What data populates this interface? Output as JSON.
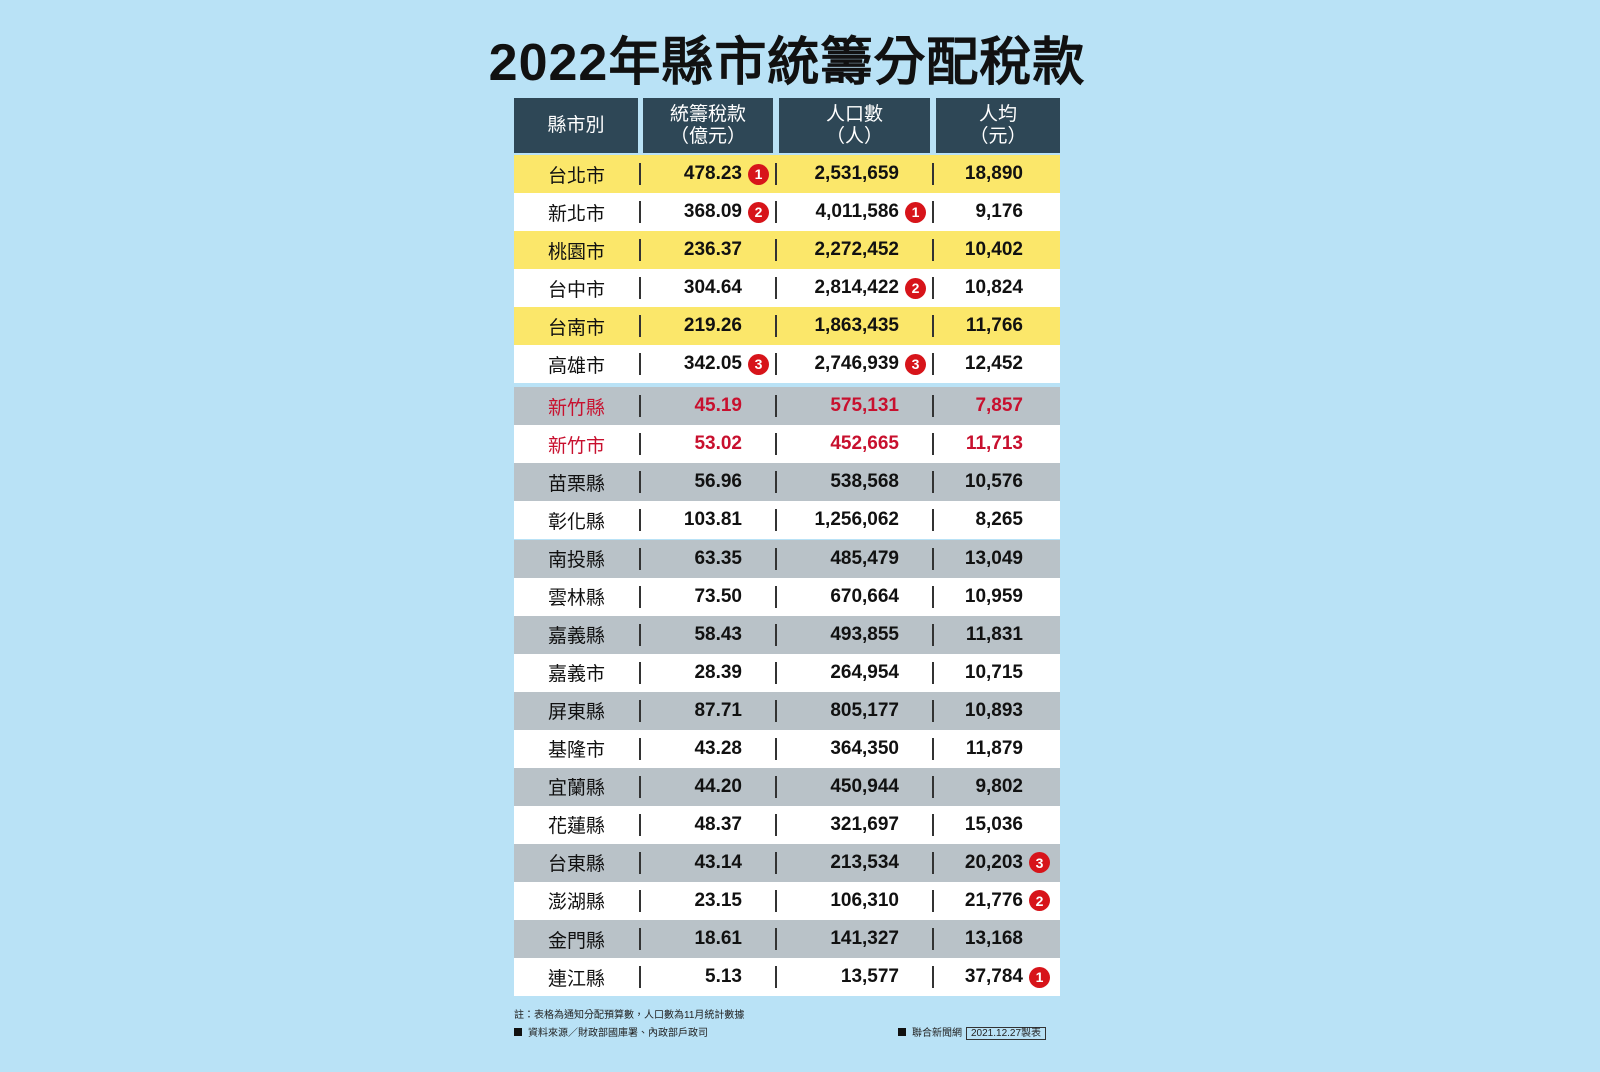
{
  "title": "2022年縣市統籌分配稅款",
  "table": {
    "header": [
      [
        "縣市別"
      ],
      [
        "統籌稅款",
        "（億元）"
      ],
      [
        "人口數",
        "（人）"
      ],
      [
        "人均",
        "（元）"
      ]
    ],
    "groups": [
      {
        "rows": [
          {
            "county": "台北市",
            "tax": "478.23",
            "tax_rank": "1",
            "population": "2,531,659",
            "per_capita": "18,890"
          },
          {
            "county": "新北市",
            "tax": "368.09",
            "tax_rank": "2",
            "population": "4,011,586",
            "population_rank": "1",
            "per_capita": "9,176"
          },
          {
            "county": "桃園市",
            "tax": "236.37",
            "population": "2,272,452",
            "per_capita": "10,402"
          },
          {
            "county": "台中市",
            "tax": "304.64",
            "population": "2,814,422",
            "population_rank": "2",
            "per_capita": "10,824"
          },
          {
            "county": "台南市",
            "tax": "219.26",
            "population": "1,863,435",
            "per_capita": "11,766"
          },
          {
            "county": "高雄市",
            "tax": "342.05",
            "tax_rank": "3",
            "population": "2,746,939",
            "population_rank": "3",
            "per_capita": "12,452"
          }
        ]
      },
      {
        "rows": [
          {
            "county": "新竹縣",
            "tax": "45.19",
            "population": "575,131",
            "per_capita": "7,857",
            "color": "#c8102e"
          },
          {
            "county": "新竹市",
            "tax": "53.02",
            "population": "452,665",
            "per_capita": "11,713",
            "color": "#c8102e"
          },
          {
            "county": "苗栗縣",
            "tax": "56.96",
            "population": "538,568",
            "per_capita": "10,576"
          },
          {
            "county": "彰化縣",
            "tax": "103.81",
            "population": "1,256,062",
            "per_capita": "8,265"
          },
          {
            "county": "南投縣",
            "tax": "63.35",
            "population": "485,479",
            "per_capita": "13,049"
          },
          {
            "county": "雲林縣",
            "tax": "73.50",
            "population": "670,664",
            "per_capita": "10,959"
          },
          {
            "county": "嘉義縣",
            "tax": "58.43",
            "population": "493,855",
            "per_capita": "11,831"
          },
          {
            "county": "嘉義市",
            "tax": "28.39",
            "population": "264,954",
            "per_capita": "10,715"
          },
          {
            "county": "屏東縣",
            "tax": "87.71",
            "population": "805,177",
            "per_capita": "10,893"
          },
          {
            "county": "基隆市",
            "tax": "43.28",
            "population": "364,350",
            "per_capita": "11,879"
          },
          {
            "county": "宜蘭縣",
            "tax": "44.20",
            "population": "450,944",
            "per_capita": "9,802"
          },
          {
            "county": "花蓮縣",
            "tax": "48.37",
            "population": "321,697",
            "per_capita": "15,036"
          },
          {
            "county": "台東縣",
            "tax": "43.14",
            "population": "213,534",
            "per_capita": "20,203",
            "per_capita_rank": "3"
          },
          {
            "county": "澎湖縣",
            "tax": "23.15",
            "population": "106,310",
            "per_capita": "21,776",
            "per_capita_rank": "2"
          },
          {
            "county": "金門縣",
            "tax": "18.61",
            "population": "141,327",
            "per_capita": "13,168"
          },
          {
            "county": "連江縣",
            "tax": "5.13",
            "population": "13,577",
            "per_capita": "37,784",
            "per_capita_rank": "1"
          }
        ]
      }
    ]
  },
  "footer": {
    "note": "註：表格為通知分配預算數，人口數為11月統計數據",
    "source": "資料來源／財政部國庫署、內政部戶政司",
    "credit": "聯合新聞網",
    "date": "2021.12.27製表"
  }
}
